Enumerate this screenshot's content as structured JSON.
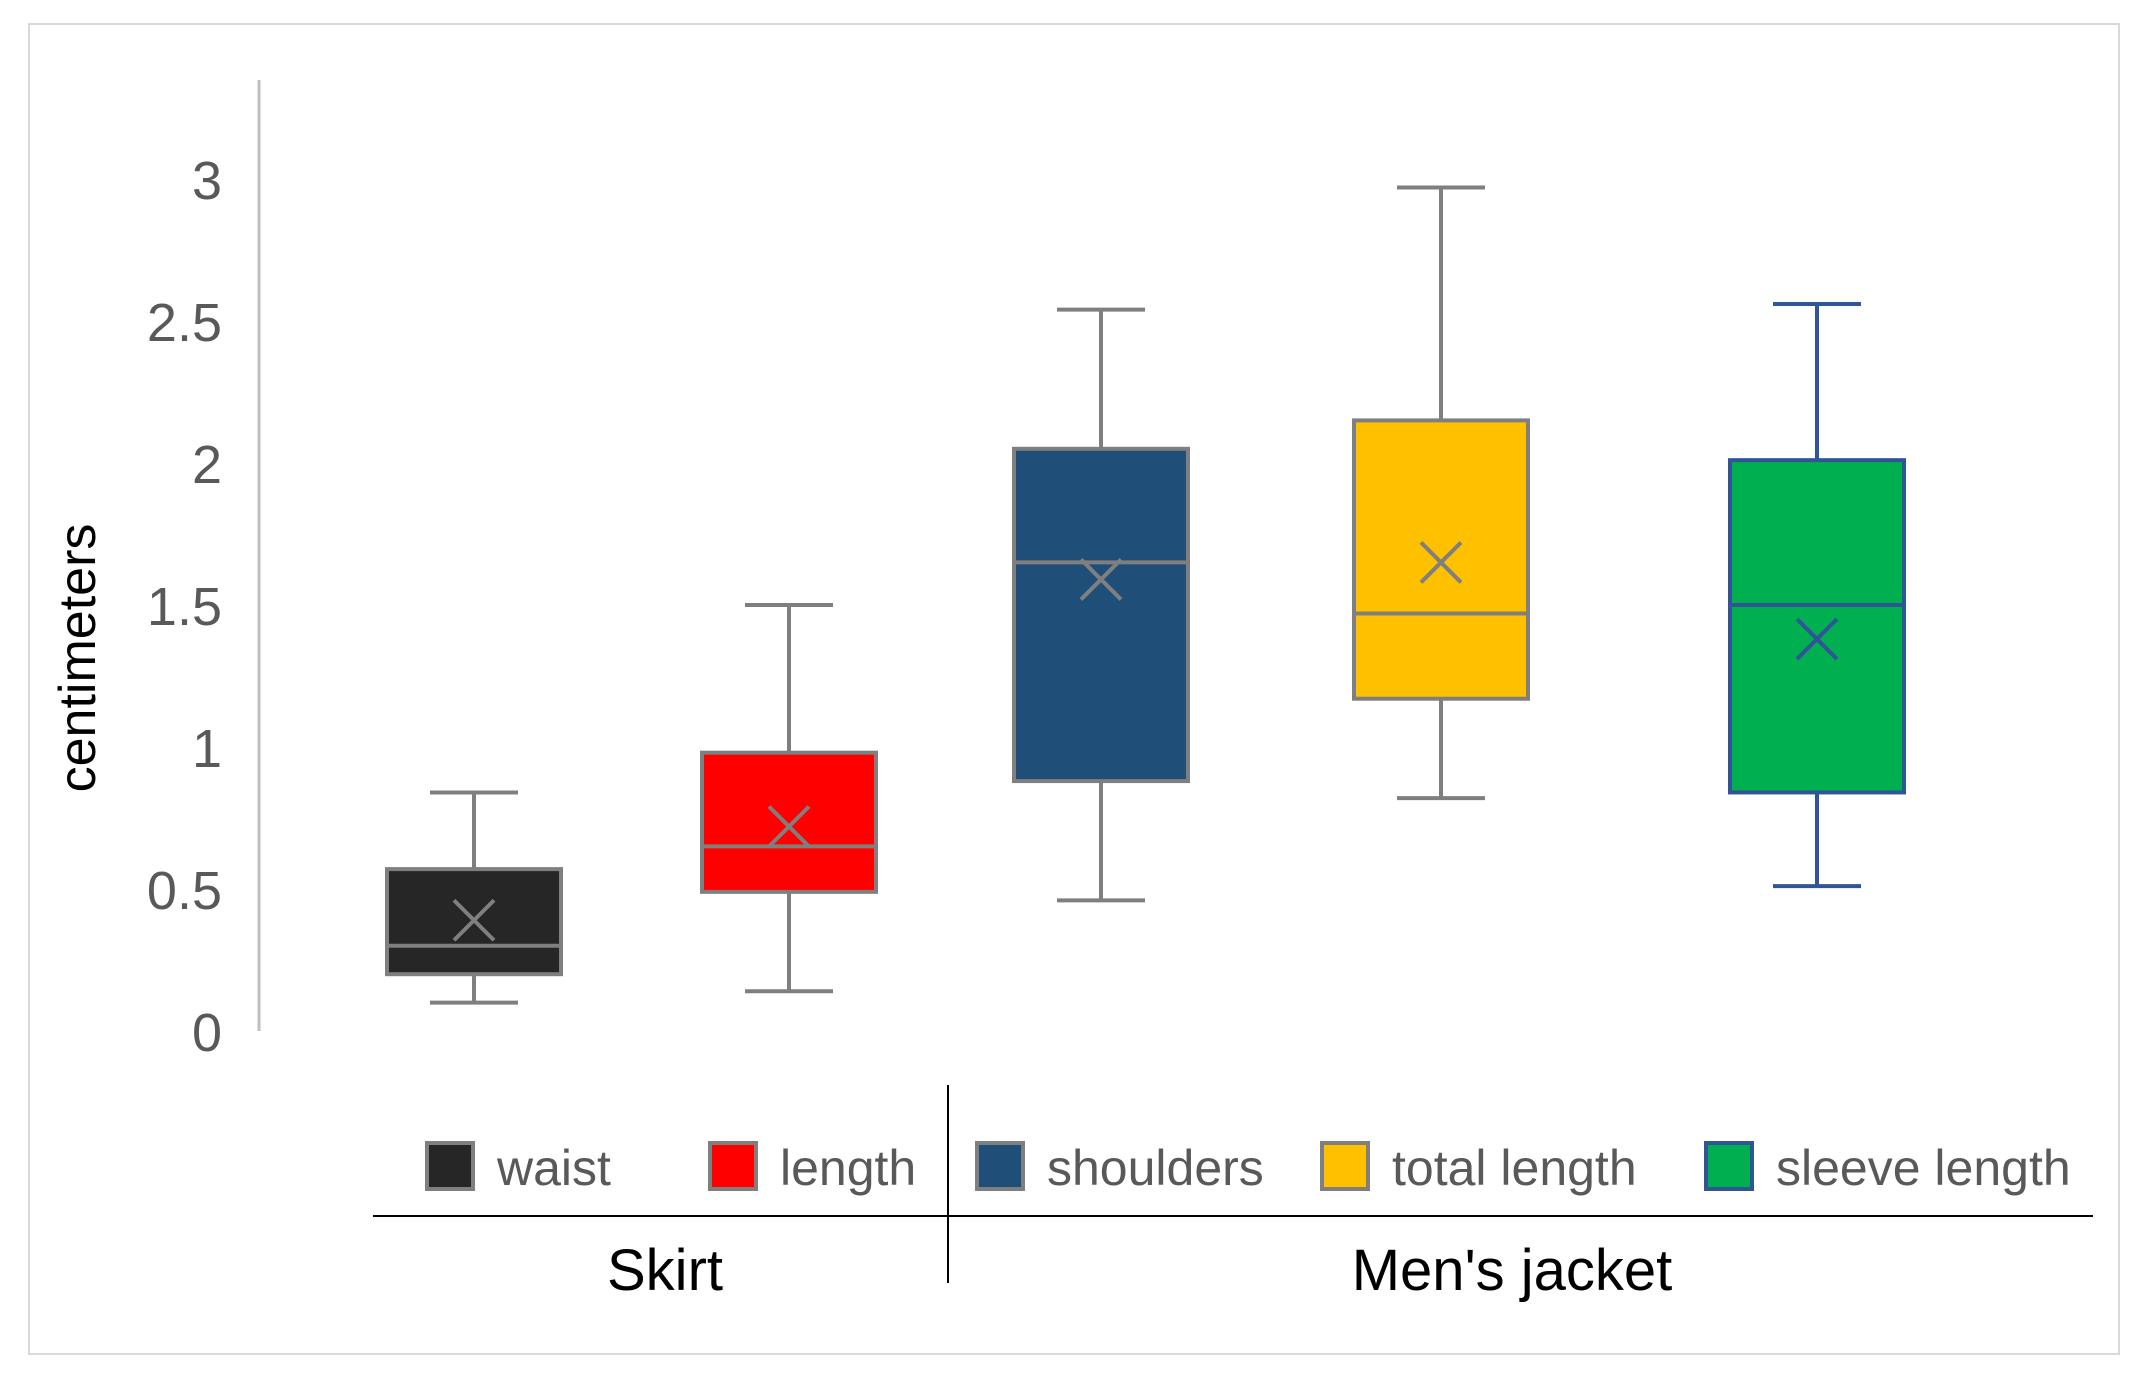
{
  "chart_data": {
    "type": "box",
    "ylabel": "centimeters",
    "ylim": [
      0,
      3.3
    ],
    "yticks": [
      0,
      0.5,
      1,
      1.5,
      2,
      2.5,
      3
    ],
    "ytick_labels": [
      "0",
      "0.5",
      "1",
      "1.5",
      "2",
      "2.5",
      "3"
    ],
    "grid": false,
    "legend_position": "bottom",
    "groups": [
      {
        "label": "Skirt",
        "series": [
          "waist",
          "length"
        ]
      },
      {
        "label": "Men's jacket",
        "series": [
          "shoulders",
          "total length",
          "sleeve length"
        ]
      }
    ],
    "series": [
      {
        "name": "waist",
        "min": 0.1,
        "q1": 0.2,
        "median": 0.3,
        "q3": 0.57,
        "max": 0.84,
        "mean": 0.39,
        "fill": "#262626",
        "stroke": "#7f7f7f"
      },
      {
        "name": "length",
        "min": 0.14,
        "q1": 0.49,
        "median": 0.65,
        "q3": 0.98,
        "max": 1.5,
        "mean": 0.72,
        "fill": "#ff0000",
        "stroke": "#7f7f7f"
      },
      {
        "name": "shoulders",
        "min": 0.46,
        "q1": 0.88,
        "median": 1.65,
        "q3": 2.05,
        "max": 2.54,
        "mean": 1.59,
        "fill": "#1f4e79",
        "stroke": "#7f7f7f"
      },
      {
        "name": "total length",
        "min": 0.82,
        "q1": 1.17,
        "median": 1.47,
        "q3": 2.15,
        "max": 2.97,
        "mean": 1.65,
        "fill": "#ffc000",
        "stroke": "#7f7f7f"
      },
      {
        "name": "sleeve length",
        "min": 0.51,
        "q1": 0.84,
        "median": 1.5,
        "q3": 2.01,
        "max": 2.56,
        "mean": 1.38,
        "fill": "#00b050",
        "stroke": "#2f5597"
      }
    ]
  }
}
